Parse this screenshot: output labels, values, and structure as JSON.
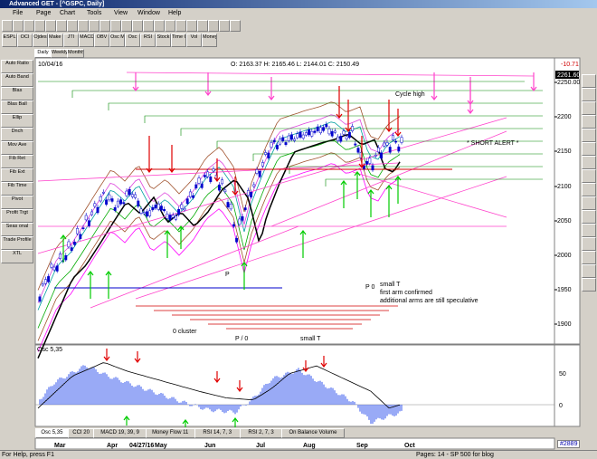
{
  "window": {
    "title": "Advanced GET - [^GSPC, Daily]"
  },
  "menu": [
    "File",
    "Page",
    "Chart",
    "Tools",
    "View",
    "Window",
    "Help"
  ],
  "toolbar": [
    "ESPL",
    "OCI",
    "Ojdes",
    "Make Trig",
    "JTI",
    "MACD",
    "OBV",
    "Osc Main",
    "Osc",
    "RSI",
    "Stock",
    "Time Chart",
    "Vol",
    "Money Flow"
  ],
  "view_tabs": [
    "Daily",
    "Weekly",
    "Monthly"
  ],
  "left_tools": [
    "Auto Ratio",
    "Auto Band",
    "Blas",
    "Blas Ball",
    "Ellip",
    "Dnch",
    "Mov Ave",
    "Fib Ret",
    "Fib Ext",
    "Fib Time",
    "Pivot",
    "Profit Trgt",
    "Seas onal",
    "Trade Profile",
    "XTL"
  ],
  "chart": {
    "date": "10/04/16",
    "ohlc": "O: 2163.37   H: 2165.46   L: 2144.01   C: 2150.49",
    "change": "-10.71",
    "last": "2261.60",
    "price_axis": [
      "2250.00",
      "2200",
      "2150",
      "2100",
      "2050",
      "2000",
      "1950",
      "1900"
    ],
    "annotations": {
      "cycle_high": "Cycle high",
      "short_alert": "* SHORT ALERT *",
      "small_t": "small T",
      "first_arm": "first arm confirmed",
      "additional": "additional arms are still speculative",
      "p": "P",
      "p0": "P 0",
      "cluster": "0 cluster",
      "p_slash_0": "P / 0",
      "small_t2": "small T"
    }
  },
  "oscillator": {
    "label": "Osc 5,35",
    "axis": [
      "50",
      "0"
    ]
  },
  "indicator_tabs": [
    "Osc 5,35",
    "CCI 20",
    "MACD 19, 39, 9",
    "Money Flow 11",
    "RSI 14, 7, 3",
    "RSI 2, 7, 3",
    "On Balance Volume"
  ],
  "months": [
    "Mar",
    "Apr",
    "04/27/16",
    "May",
    "Jun",
    "Jul",
    "Aug",
    "Sep",
    "Oct"
  ],
  "status": {
    "help": "For Help, press F1",
    "pages": "Pages: 14 - SP 500 for blog",
    "id": "#2889"
  }
}
